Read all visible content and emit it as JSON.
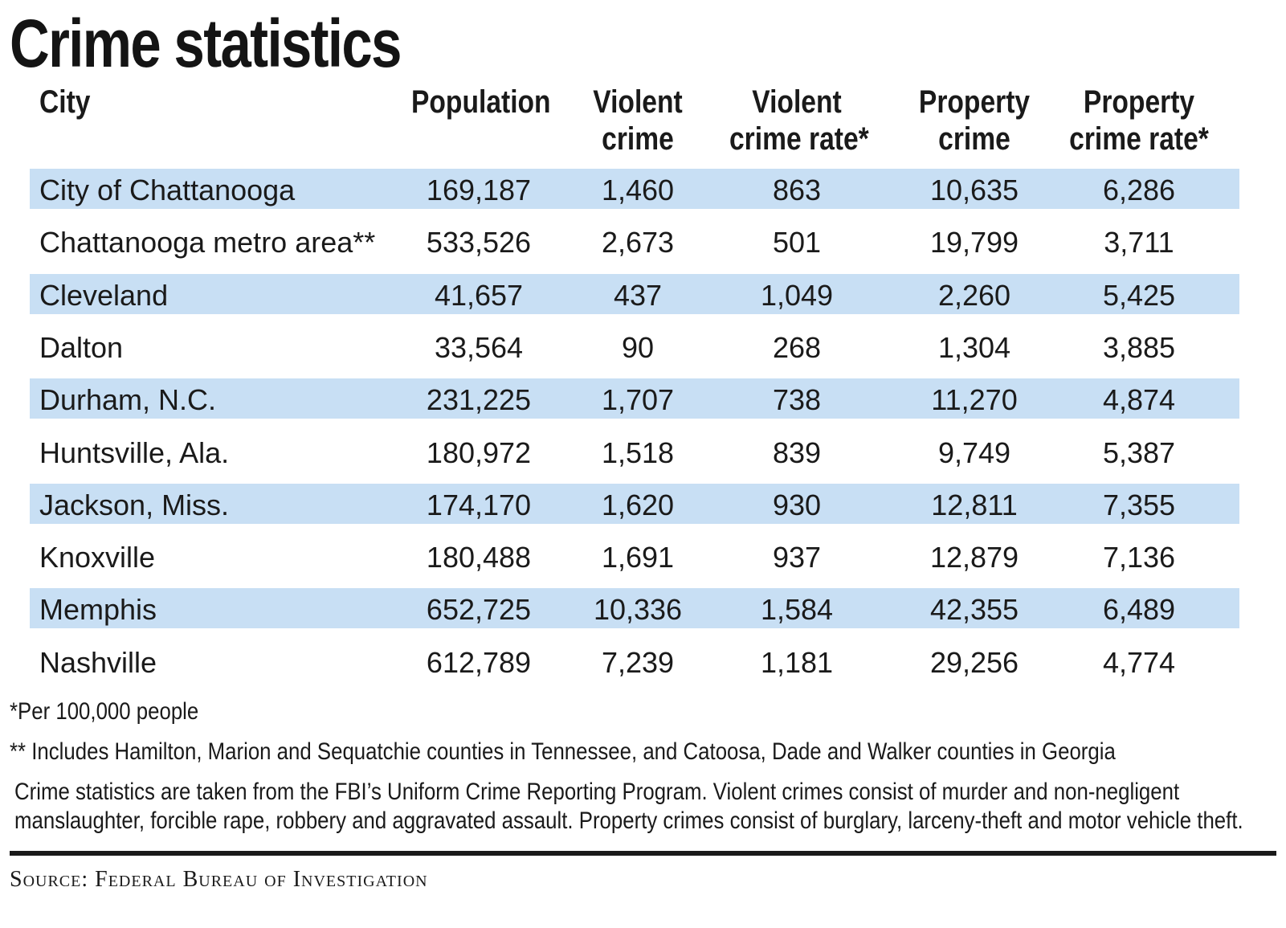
{
  "chart_data": {
    "type": "table",
    "title": "Crime statistics",
    "columns": [
      {
        "key": "city",
        "lines": [
          "City"
        ]
      },
      {
        "key": "population",
        "lines": [
          "Population"
        ]
      },
      {
        "key": "violent_crime",
        "lines": [
          "Violent",
          "crime"
        ]
      },
      {
        "key": "violent_crime_rate",
        "lines": [
          "Violent",
          "crime rate*"
        ]
      },
      {
        "key": "property_crime",
        "lines": [
          "Property",
          "crime"
        ]
      },
      {
        "key": "property_crime_rate",
        "lines": [
          "Property",
          "crime rate*"
        ]
      }
    ],
    "rows": [
      {
        "city": "City of Chattanooga",
        "population": "169,187",
        "violent_crime": "1,460",
        "violent_crime_rate": "863",
        "property_crime": "10,635",
        "property_crime_rate": "6,286"
      },
      {
        "city": "Chattanooga metro area**",
        "population": "533,526",
        "violent_crime": "2,673",
        "violent_crime_rate": "501",
        "property_crime": "19,799",
        "property_crime_rate": "3,711"
      },
      {
        "city": "Cleveland",
        "population": "41,657",
        "violent_crime": "437",
        "violent_crime_rate": "1,049",
        "property_crime": "2,260",
        "property_crime_rate": "5,425"
      },
      {
        "city": "Dalton",
        "population": "33,564",
        "violent_crime": "90",
        "violent_crime_rate": "268",
        "property_crime": "1,304",
        "property_crime_rate": "3,885"
      },
      {
        "city": "Durham, N.C.",
        "population": "231,225",
        "violent_crime": "1,707",
        "violent_crime_rate": "738",
        "property_crime": "11,270",
        "property_crime_rate": "4,874"
      },
      {
        "city": "Huntsville, Ala.",
        "population": "180,972",
        "violent_crime": "1,518",
        "violent_crime_rate": "839",
        "property_crime": "9,749",
        "property_crime_rate": "5,387"
      },
      {
        "city": "Jackson, Miss.",
        "population": "174,170",
        "violent_crime": "1,620",
        "violent_crime_rate": "930",
        "property_crime": "12,811",
        "property_crime_rate": "7,355"
      },
      {
        "city": "Knoxville",
        "population": "180,488",
        "violent_crime": "1,691",
        "violent_crime_rate": "937",
        "property_crime": "12,879",
        "property_crime_rate": "7,136"
      },
      {
        "city": "Memphis",
        "population": "652,725",
        "violent_crime": "10,336",
        "violent_crime_rate": "1,584",
        "property_crime": "42,355",
        "property_crime_rate": "6,489"
      },
      {
        "city": "Nashville",
        "population": "612,789",
        "violent_crime": "7,239",
        "violent_crime_rate": "1,181",
        "property_crime": "29,256",
        "property_crime_rate": "4,774"
      }
    ],
    "footnotes": [
      "*Per 100,000 people",
      "** Includes Hamilton, Marion and Sequatchie counties in Tennessee, and Catoosa, Dade and Walker counties in Georgia"
    ],
    "description_lines": [
      "Crime statistics are taken from the FBI’s Uniform Crime Reporting Program. Violent crimes consist of murder and non-negligent",
      "manslaughter, forcible rape, robbery and aggravated assault. Property crimes consist of burglary, larceny-theft and motor vehicle theft."
    ],
    "source": "Source: Federal Bureau of Investigation"
  },
  "colors": {
    "row_shade": "#c8dff4",
    "text": "#1a1a1a",
    "rule": "#1a1a1a"
  }
}
